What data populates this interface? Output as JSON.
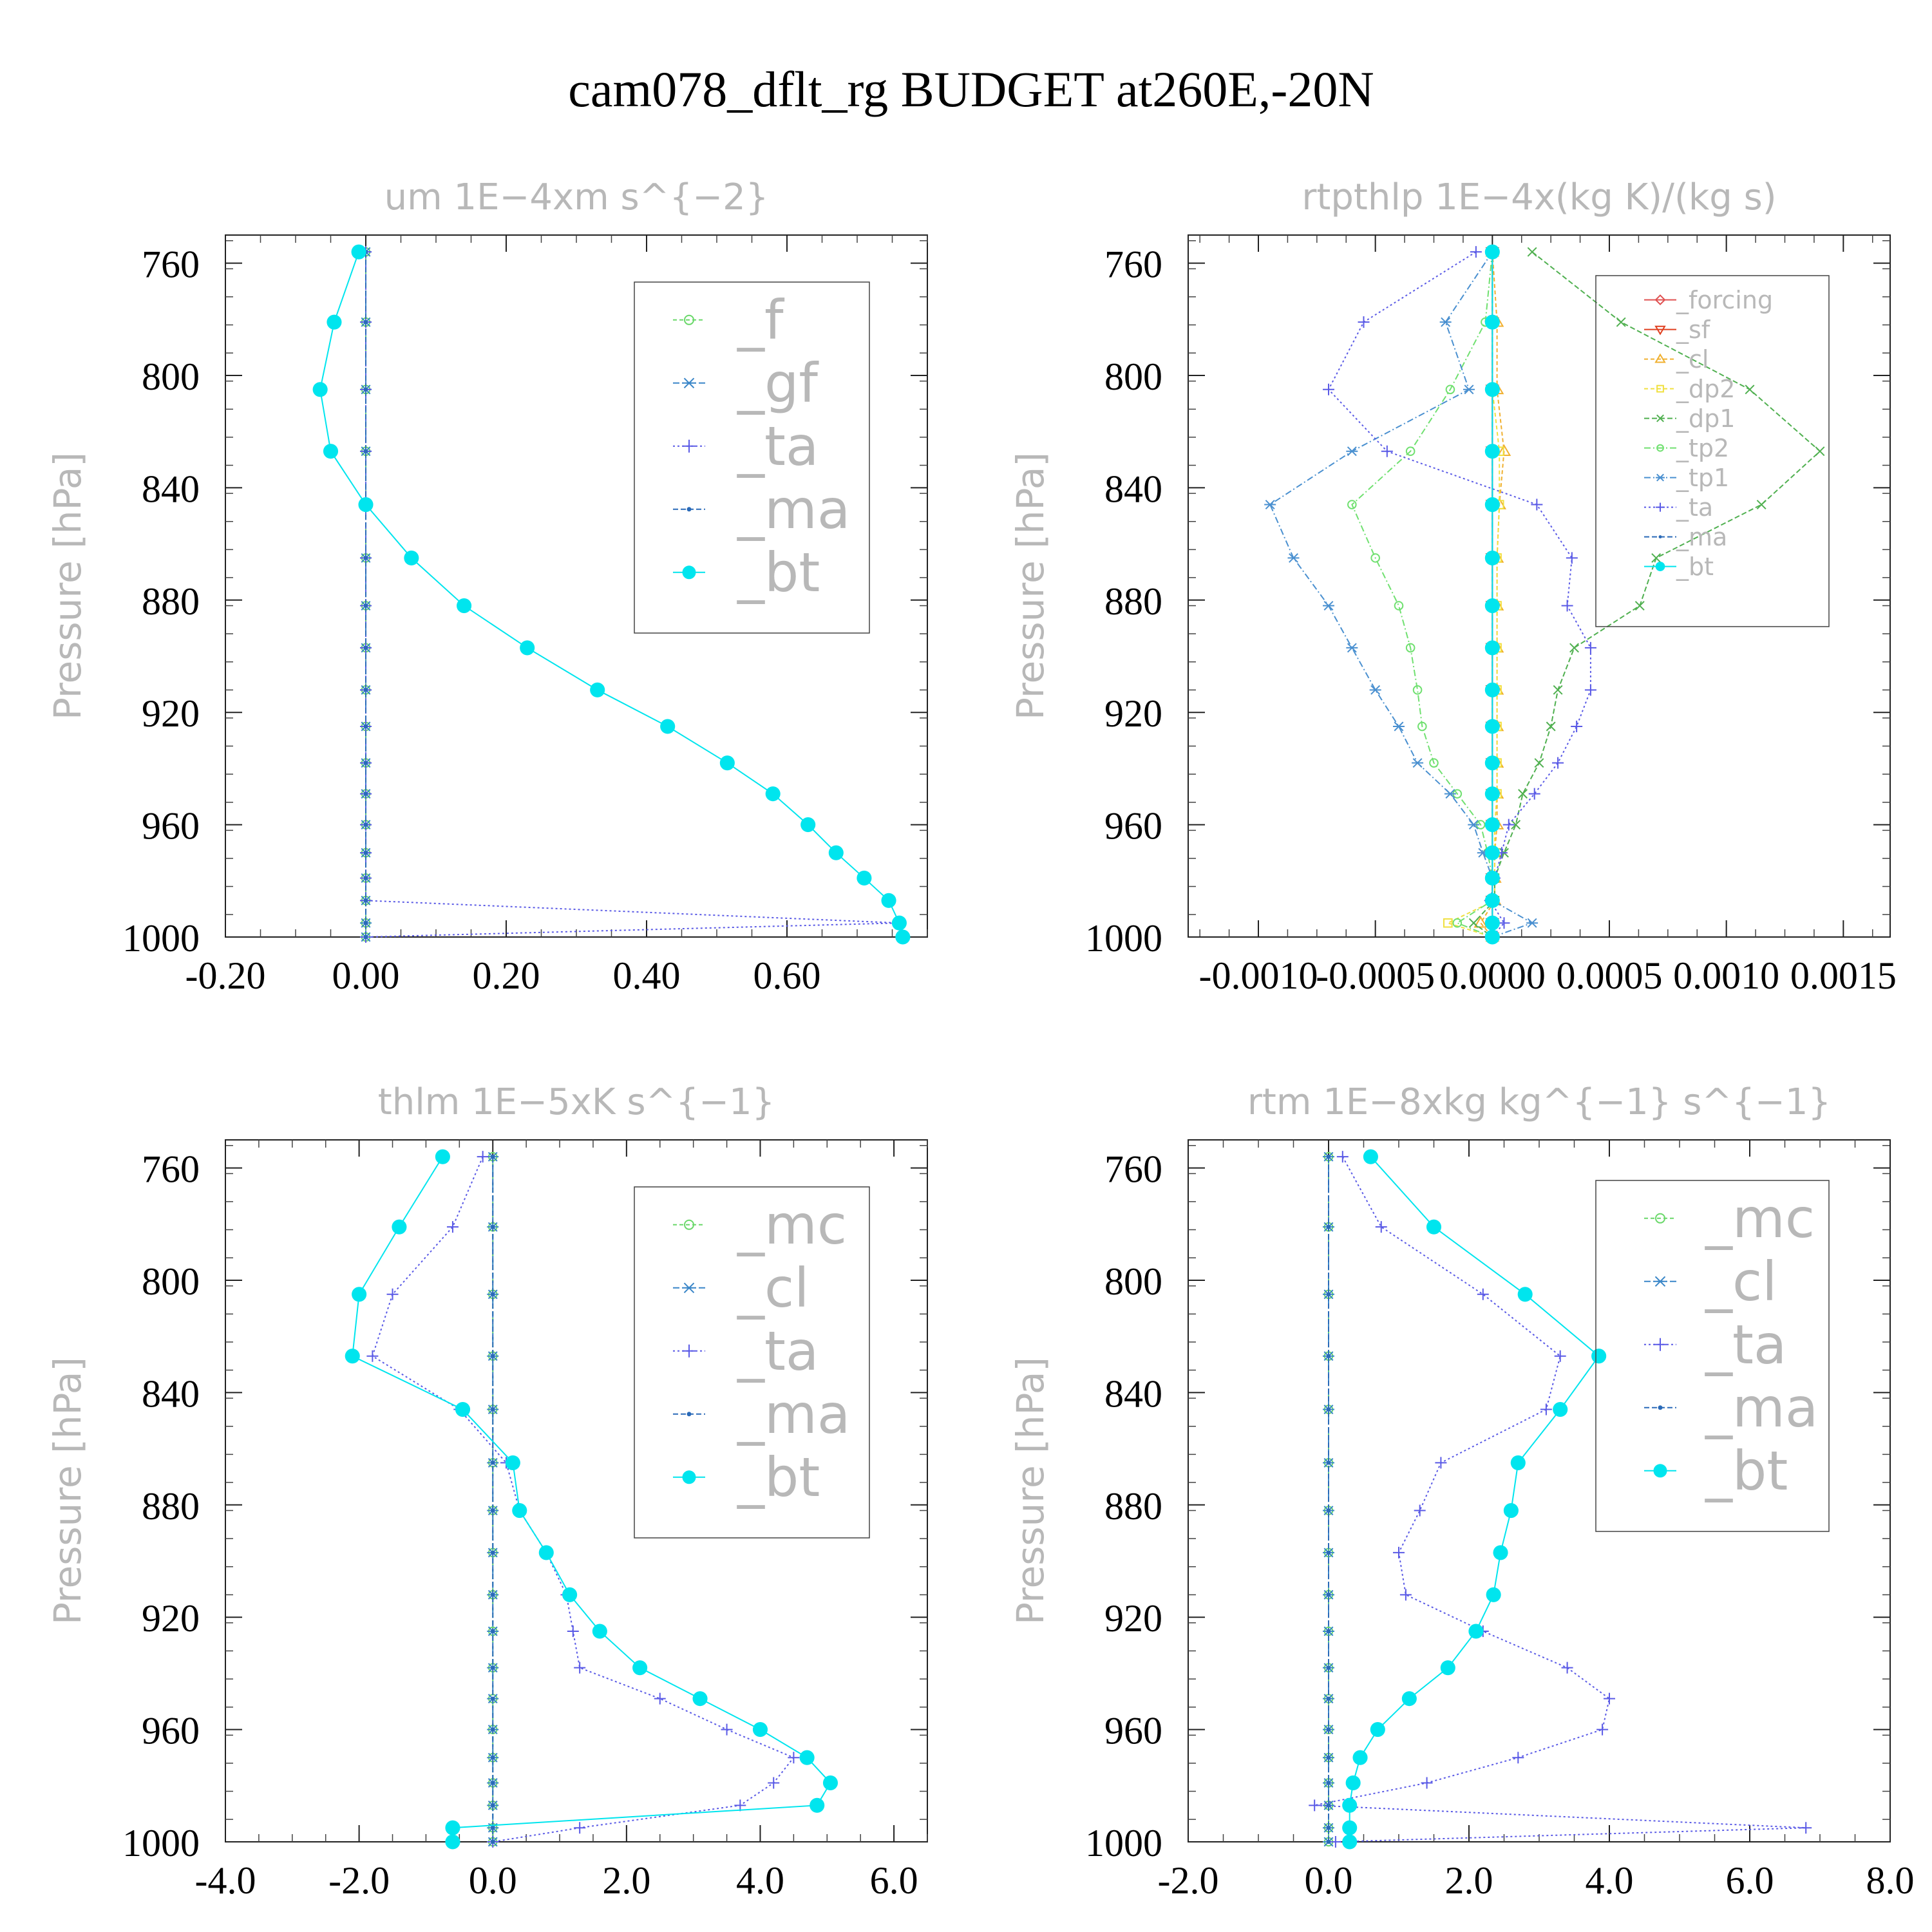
{
  "figure_title": "cam078_dflt_rg  BUDGET at260E,-20N",
  "chart_data": [
    {
      "type": "line",
      "title": "um   1E−4xm s^{−2}",
      "ylabel": "Pressure [hPa]",
      "xlabel": "",
      "xlim": [
        -0.2,
        0.8
      ],
      "ylim": [
        1000,
        750
      ],
      "x_ticks": [
        -0.2,
        0.0,
        0.2,
        0.4,
        0.6
      ],
      "x_tick_labels": [
        "-0.20",
        "0.00",
        "0.20",
        "0.40",
        "0.60"
      ],
      "y_ticks": [
        760,
        800,
        840,
        880,
        920,
        960,
        1000
      ],
      "y_tick_labels": [
        "760",
        "800",
        "840",
        "880",
        "920",
        "960",
        "1000"
      ],
      "legend_position": "top-right",
      "y": [
        756,
        781,
        805,
        827,
        846,
        865,
        882,
        897,
        912,
        925,
        938,
        949,
        960,
        970,
        979,
        987,
        995,
        1000
      ],
      "series": [
        {
          "name": "_f",
          "color": "#6ad86a",
          "marker": "circle-open",
          "dash": "6 4",
          "values": [
            0,
            0,
            0,
            0,
            0,
            0,
            0,
            0,
            0,
            0,
            0,
            0,
            0,
            0,
            0,
            0,
            0,
            0
          ]
        },
        {
          "name": "_gf",
          "color": "#3a86c8",
          "marker": "star",
          "dash": "10 4 2 4",
          "values": [
            0,
            0,
            0,
            0,
            0,
            0,
            0,
            0,
            0,
            0,
            0,
            0,
            0,
            0,
            0,
            0,
            0,
            0
          ]
        },
        {
          "name": "_ta",
          "color": "#5a5ae6",
          "marker": "plus",
          "dash": "3 4",
          "values": [
            0,
            0,
            0,
            0,
            0,
            0,
            0,
            0,
            0,
            0,
            0,
            0,
            0,
            0,
            0,
            0,
            0.76,
            0
          ]
        },
        {
          "name": "_ma",
          "color": "#2a6ab8",
          "marker": "dot",
          "dash": "8 4",
          "values": [
            0,
            0,
            0,
            0,
            0,
            0,
            0,
            0,
            0,
            0,
            0,
            0,
            0,
            0,
            0,
            0,
            0,
            0
          ]
        },
        {
          "name": "_bt",
          "color": "#00e5ee",
          "marker": "filled",
          "dash": "",
          "values": [
            -0.01,
            -0.045,
            -0.065,
            -0.05,
            0.0,
            0.065,
            0.14,
            0.23,
            0.33,
            0.43,
            0.515,
            0.58,
            0.63,
            0.67,
            0.71,
            0.745,
            0.76,
            0.765
          ]
        }
      ]
    },
    {
      "type": "line",
      "title": "rtpthlp   1E−4x(kg K)/(kg s)",
      "ylabel": "Pressure [hPa]",
      "xlabel": "",
      "xlim": [
        -0.0013,
        0.0017
      ],
      "ylim": [
        1000,
        750
      ],
      "x_ticks": [
        -0.001,
        -0.0005,
        0.0,
        0.0005,
        0.001,
        0.0015
      ],
      "x_tick_labels": [
        "-0.0010",
        "-0.0005",
        "0.0000",
        "0.0005",
        "0.0010",
        "0.0015"
      ],
      "y_ticks": [
        760,
        800,
        840,
        880,
        920,
        960,
        1000
      ],
      "y_tick_labels": [
        "760",
        "800",
        "840",
        "880",
        "920",
        "960",
        "1000"
      ],
      "legend_position": "top-right",
      "y": [
        756,
        781,
        805,
        827,
        846,
        865,
        882,
        897,
        912,
        925,
        938,
        949,
        960,
        970,
        979,
        987,
        995,
        1000
      ],
      "series": [
        {
          "name": "_forcing",
          "color": "#e05050",
          "marker": "diamond",
          "dash": "",
          "values": [
            0,
            0,
            0,
            0,
            0,
            0,
            0,
            0,
            0,
            0,
            0,
            0,
            0,
            0,
            0,
            0,
            0,
            0
          ]
        },
        {
          "name": "_sf",
          "color": "#e04020",
          "marker": "triangle-down",
          "dash": "",
          "values": [
            0,
            0,
            0,
            0,
            0,
            0,
            0,
            0,
            0,
            0,
            0,
            0,
            0,
            0,
            0,
            0,
            0,
            0
          ]
        },
        {
          "name": "_cl",
          "color": "#f0b030",
          "marker": "triangle",
          "dash": "6 4",
          "values": [
            0,
            2e-05,
            2e-05,
            5e-05,
            3e-05,
            2e-05,
            2e-05,
            2e-05,
            2e-05,
            2e-05,
            2e-05,
            2e-05,
            2e-05,
            1e-05,
            1e-05,
            1e-05,
            -5e-05,
            0
          ]
        },
        {
          "name": "_dp2",
          "color": "#f0e040",
          "marker": "square",
          "dash": "6 4",
          "values": [
            0,
            0,
            0,
            3e-05,
            3e-05,
            2e-05,
            2e-05,
            2e-05,
            2e-05,
            2e-05,
            2e-05,
            2e-05,
            1e-05,
            1e-05,
            1e-05,
            1e-05,
            -0.00019,
            0
          ]
        },
        {
          "name": "_dp1",
          "color": "#50b050",
          "marker": "x",
          "dash": "8 4",
          "values": [
            0.00017,
            0.00055,
            0.0011,
            0.0014,
            0.00115,
            0.0007,
            0.00063,
            0.00035,
            0.00028,
            0.00025,
            0.0002,
            0.00013,
            0.0001,
            5e-05,
            1e-05,
            1e-05,
            -8e-05,
            0
          ]
        },
        {
          "name": "_tp2",
          "color": "#70e070",
          "marker": "circle-open",
          "dash": "10 4 2 4",
          "values": [
            0,
            -3e-05,
            -0.00018,
            -0.00035,
            -0.0006,
            -0.0005,
            -0.0004,
            -0.00035,
            -0.00032,
            -0.0003,
            -0.00025,
            -0.00015,
            -5e-05,
            -2e-05,
            0,
            0,
            -0.00015,
            0
          ]
        },
        {
          "name": "_tp1",
          "color": "#4a90d0",
          "marker": "star",
          "dash": "10 4 2 4",
          "values": [
            0,
            -0.0002,
            -0.0001,
            -0.0006,
            -0.00095,
            -0.00085,
            -0.0007,
            -0.0006,
            -0.0005,
            -0.0004,
            -0.00032,
            -0.00018,
            -8e-05,
            -4e-05,
            0,
            0,
            0.00017,
            0
          ]
        },
        {
          "name": "_ta",
          "color": "#5a5ae6",
          "marker": "plus",
          "dash": "3 4",
          "values": [
            -7e-05,
            -0.00055,
            -0.0007,
            -0.00045,
            0.00019,
            0.00034,
            0.00032,
            0.00042,
            0.00042,
            0.00036,
            0.00028,
            0.00018,
            7e-05,
            4e-05,
            1e-05,
            -1e-05,
            5e-05,
            0
          ]
        },
        {
          "name": "_ma",
          "color": "#2a6ab8",
          "marker": "dot",
          "dash": "8 4",
          "values": [
            0,
            0,
            0,
            0,
            0,
            0,
            0,
            0,
            0,
            0,
            0,
            0,
            0,
            0,
            0,
            0,
            0,
            0
          ]
        },
        {
          "name": "_bt",
          "color": "#00e5ee",
          "marker": "filled",
          "dash": "",
          "values": [
            0,
            0,
            0,
            0,
            0,
            0,
            0,
            0,
            0,
            0,
            0,
            0,
            0,
            0,
            0,
            0,
            0,
            0
          ]
        }
      ]
    },
    {
      "type": "line",
      "title": "thlm   1E−5xK s^{−1}",
      "ylabel": "Pressure [hPa]",
      "xlabel": "",
      "xlim": [
        -4,
        6.5
      ],
      "ylim": [
        1000,
        750
      ],
      "x_ticks": [
        -4,
        -2,
        0,
        2,
        4,
        6
      ],
      "x_tick_labels": [
        "-4.0",
        "-2.0",
        "0.0",
        "2.0",
        "4.0",
        "6.0"
      ],
      "y_ticks": [
        760,
        800,
        840,
        880,
        920,
        960,
        1000
      ],
      "y_tick_labels": [
        "760",
        "800",
        "840",
        "880",
        "920",
        "960",
        "1000"
      ],
      "legend_position": "top-right",
      "y": [
        756,
        781,
        805,
        827,
        846,
        865,
        882,
        897,
        912,
        925,
        938,
        949,
        960,
        970,
        979,
        987,
        995,
        1000
      ],
      "series": [
        {
          "name": "_mc",
          "color": "#6ad86a",
          "marker": "circle-open",
          "dash": "6 4",
          "values": [
            0,
            0,
            0,
            0,
            0,
            0,
            0,
            0,
            0,
            0,
            0,
            0,
            0,
            0,
            0,
            0,
            0,
            0
          ]
        },
        {
          "name": "_cl",
          "color": "#3a86c8",
          "marker": "star",
          "dash": "10 4 2 4",
          "values": [
            0,
            0,
            0,
            0,
            0,
            0,
            0,
            0,
            0,
            0,
            0,
            0,
            0,
            0,
            0,
            0,
            0,
            0
          ]
        },
        {
          "name": "_ta",
          "color": "#5a5ae6",
          "marker": "plus",
          "dash": "3 4",
          "values": [
            -0.15,
            -0.6,
            -1.5,
            -1.8,
            -0.5,
            0.2,
            0.4,
            0.8,
            1.1,
            1.2,
            1.3,
            2.5,
            3.5,
            4.5,
            4.2,
            3.7,
            1.3,
            0
          ]
        },
        {
          "name": "_ma",
          "color": "#2a6ab8",
          "marker": "dot",
          "dash": "8 4",
          "values": [
            0,
            0,
            0,
            0,
            0,
            0,
            0,
            0,
            0,
            0,
            0,
            0,
            0,
            0,
            0,
            0,
            0,
            0
          ]
        },
        {
          "name": "_bt",
          "color": "#00e5ee",
          "marker": "filled",
          "dash": "",
          "values": [
            -0.75,
            -1.4,
            -2.0,
            -2.1,
            -0.45,
            0.3,
            0.4,
            0.8,
            1.15,
            1.6,
            2.2,
            3.1,
            4.0,
            4.7,
            5.05,
            4.85,
            -0.6,
            -0.6
          ]
        }
      ]
    },
    {
      "type": "line",
      "title": "rtm   1E−8xkg kg^{−1} s^{−1}",
      "ylabel": "Pressure [hPa]",
      "xlabel": "",
      "xlim": [
        -2,
        8
      ],
      "ylim": [
        1000,
        750
      ],
      "x_ticks": [
        -2,
        0,
        2,
        4,
        6,
        8
      ],
      "x_tick_labels": [
        "-2.0",
        "0.0",
        "2.0",
        "4.0",
        "6.0",
        "8.0"
      ],
      "y_ticks": [
        760,
        800,
        840,
        880,
        920,
        960,
        1000
      ],
      "y_tick_labels": [
        "760",
        "800",
        "840",
        "880",
        "920",
        "960",
        "1000"
      ],
      "legend_position": "top-right",
      "y": [
        756,
        781,
        805,
        827,
        846,
        865,
        882,
        897,
        912,
        925,
        938,
        949,
        960,
        970,
        979,
        987,
        995,
        1000
      ],
      "series": [
        {
          "name": "_mc",
          "color": "#6ad86a",
          "marker": "circle-open",
          "dash": "6 4",
          "values": [
            0,
            0,
            0,
            0,
            0,
            0,
            0,
            0,
            0,
            0,
            0,
            0,
            0,
            0,
            0,
            0,
            0,
            0
          ]
        },
        {
          "name": "_cl",
          "color": "#3a86c8",
          "marker": "star",
          "dash": "10 4 2 4",
          "values": [
            0,
            0,
            0,
            0,
            0,
            0,
            0,
            0,
            0,
            0,
            0,
            0,
            0,
            0,
            0,
            0,
            0,
            0
          ]
        },
        {
          "name": "_ta",
          "color": "#5a5ae6",
          "marker": "plus",
          "dash": "3 4",
          "values": [
            0.2,
            0.75,
            2.2,
            3.3,
            3.1,
            1.6,
            1.3,
            1.0,
            1.1,
            2.2,
            3.4,
            4.0,
            3.9,
            2.7,
            1.4,
            -0.2,
            6.8,
            0.1
          ]
        },
        {
          "name": "_ma",
          "color": "#2a6ab8",
          "marker": "dot",
          "dash": "8 4",
          "values": [
            0,
            0,
            0,
            0,
            0,
            0,
            0,
            0,
            0,
            0,
            0,
            0,
            0,
            0,
            0,
            0,
            0,
            0
          ]
        },
        {
          "name": "_bt",
          "color": "#00e5ee",
          "marker": "filled",
          "dash": "",
          "values": [
            0.6,
            1.5,
            2.8,
            3.85,
            3.3,
            2.7,
            2.6,
            2.45,
            2.35,
            2.1,
            1.7,
            1.15,
            0.7,
            0.45,
            0.35,
            0.3,
            0.3,
            0.3
          ]
        }
      ]
    }
  ]
}
